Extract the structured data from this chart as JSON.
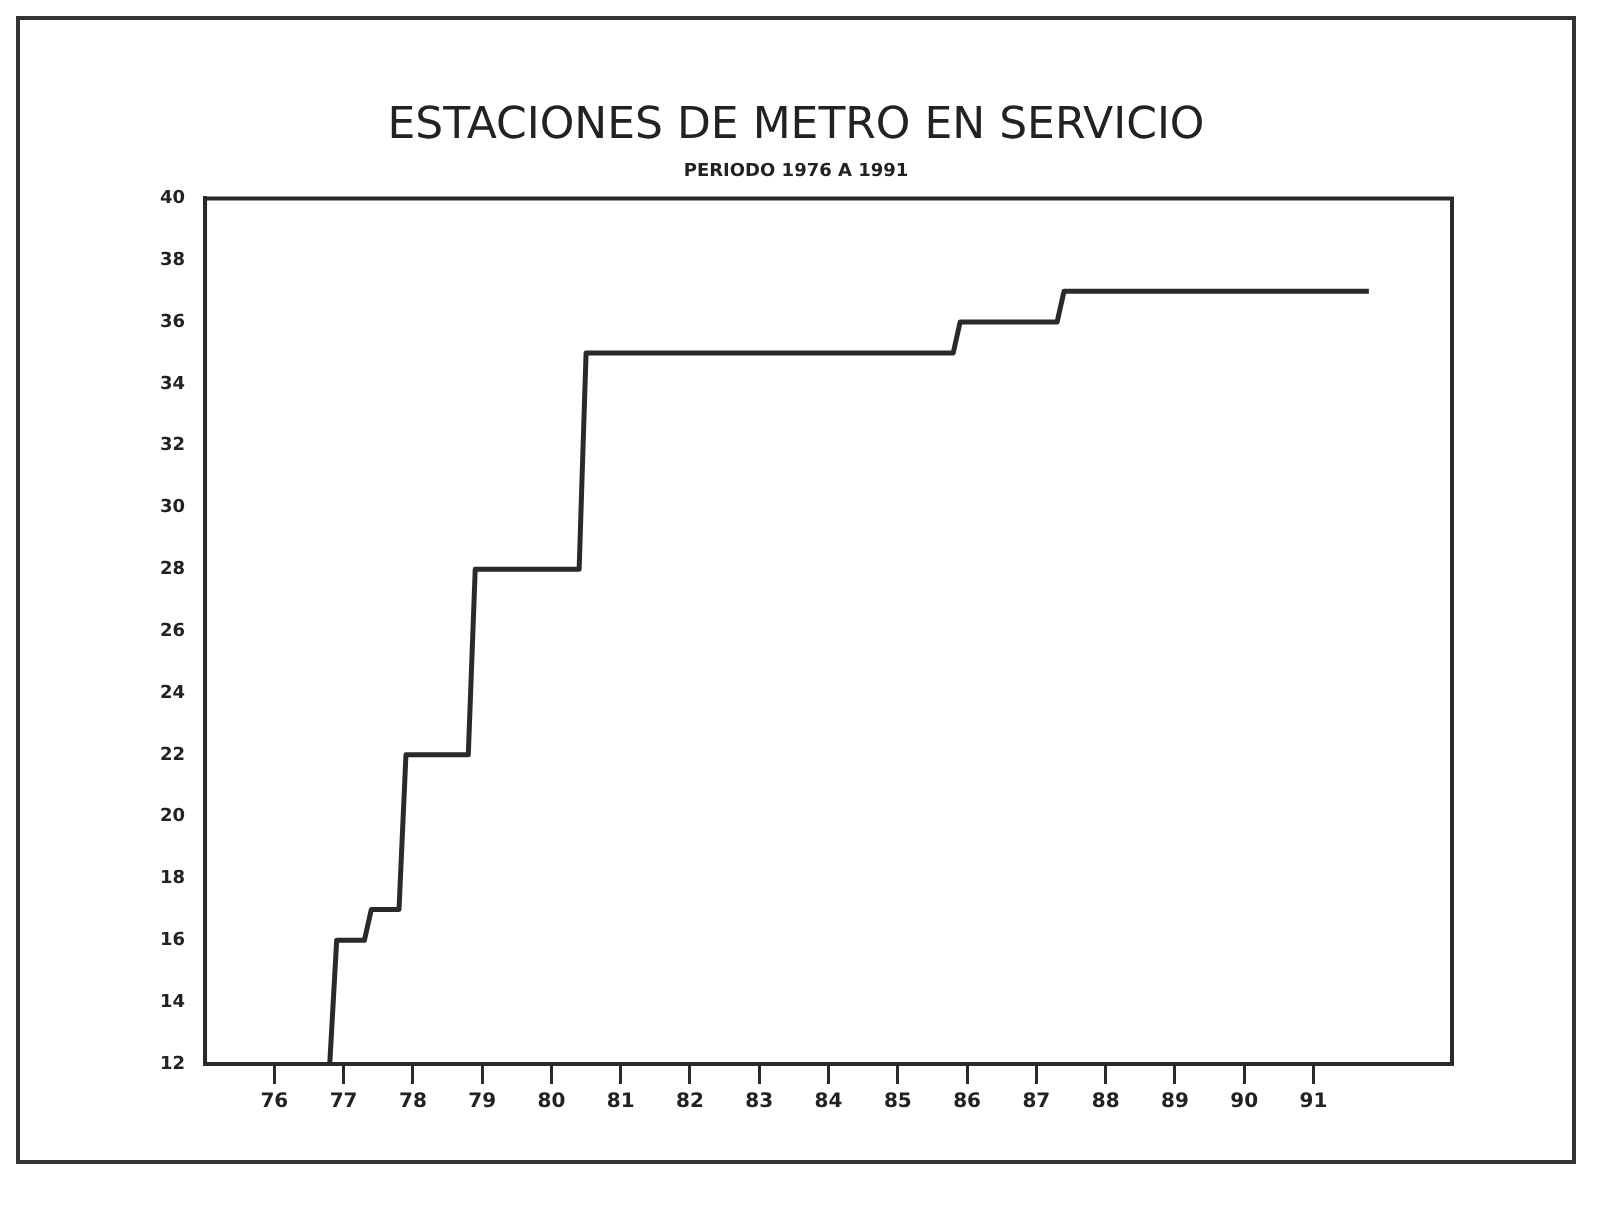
{
  "chart_data": {
    "type": "line",
    "title": "ESTACIONES DE METRO EN SERVICIO",
    "subtitle": "PERIODO 1976 A 1991",
    "x": [
      76.8,
      76.9,
      77.3,
      77.4,
      77.8,
      77.9,
      78.8,
      78.9,
      80.4,
      80.5,
      85.8,
      85.9,
      87.3,
      87.4,
      91.8
    ],
    "series": [
      {
        "color": "#2a2a2a",
        "values": [
          12,
          16,
          16,
          17,
          17,
          22,
          22,
          28,
          28,
          35,
          35,
          36,
          36,
          37,
          37
        ]
      }
    ],
    "xlim": [
      75,
      93
    ],
    "xticks": [
      76,
      77,
      78,
      79,
      80,
      81,
      82,
      83,
      84,
      85,
      86,
      87,
      88,
      89,
      90,
      91
    ],
    "ylim": [
      12,
      40
    ],
    "yticks": [
      12,
      14,
      16,
      18,
      20,
      22,
      24,
      26,
      28,
      30,
      32,
      34,
      36,
      38,
      40
    ],
    "grid": false,
    "legend": false,
    "marker": "none",
    "line_style": "solid"
  }
}
